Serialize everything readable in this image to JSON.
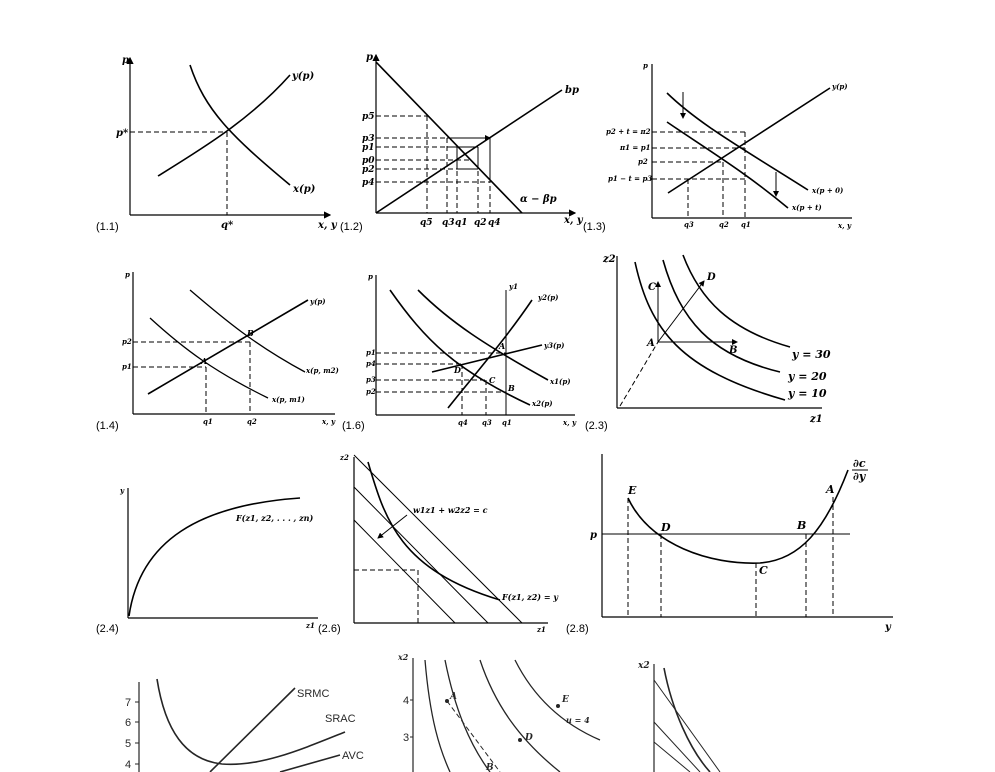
{
  "figures": [
    {
      "id": "1.1",
      "number": "(1.1)",
      "p_axis": "p",
      "p_star": "p*",
      "q_star": "q*",
      "x_axis": "x, y",
      "supply": "y(p)",
      "demand": "x(p)"
    },
    {
      "id": "1.2",
      "number": "(1.2)",
      "p_axis": "p",
      "x_axis": "x, y",
      "supply": "bp",
      "demand": "α − βp",
      "prices": [
        "p5",
        "p3",
        "p1",
        "p0",
        "p2",
        "p4"
      ],
      "quantities": [
        "q5",
        "q3",
        "q1",
        "q2",
        "q4"
      ]
    },
    {
      "id": "1.3",
      "number": "(1.3)",
      "p_axis": "p",
      "x_axis": "x, y",
      "supply": "y(p)",
      "demand1": "x(p + 0)",
      "demand2": "x(p + t)",
      "prices": [
        "p2 + t = π2",
        "π1 = p1",
        "p2",
        "p1 − t = p3"
      ],
      "quantities": [
        "q3",
        "q2",
        "q1"
      ]
    },
    {
      "id": "1.4",
      "number": "(1.4)",
      "p_axis": "p",
      "x_axis": "x, y",
      "supply": "y(p)",
      "demand1": "x(p, m2)",
      "demand2": "x(p, m1)",
      "prices": [
        "p2",
        "p1"
      ],
      "quantities": [
        "q1",
        "q2"
      ],
      "points": [
        "A",
        "B"
      ]
    },
    {
      "id": "1.6",
      "number": "(1.6)",
      "p_axis": "p",
      "x_axis": "x, y",
      "y1": "y1",
      "curves": [
        "y2(p)",
        "y3(p)",
        "x1(p)",
        "x2(p)"
      ],
      "prices": [
        "p1",
        "p4",
        "p3",
        "p2"
      ],
      "quantities": [
        "q4",
        "q3",
        "q1"
      ],
      "points": [
        "A",
        "D",
        "C",
        "B"
      ]
    },
    {
      "id": "2.3",
      "number": "(2.3)",
      "y_axis": "z2",
      "x_axis": "z1",
      "isoquants": [
        "y = 30",
        "y = 20",
        "y = 10"
      ],
      "points": [
        "A",
        "B",
        "C",
        "D"
      ]
    },
    {
      "id": "2.4",
      "number": "(2.4)",
      "y_axis": "y",
      "x_axis": "z1",
      "curve": "F(z1, z2, . . . , zn)"
    },
    {
      "id": "2.6",
      "number": "(2.6)",
      "y_axis": "z2",
      "x_axis": "z1",
      "isocost": "w1z1 + w2z2 = c",
      "isoquant": "F(z1, z2) = y"
    },
    {
      "id": "2.8",
      "number": "(2.8)",
      "y_axis": "p",
      "x_axis": "y",
      "curve_num": "∂c",
      "curve_den": "∂y",
      "points": [
        "E",
        "D",
        "C",
        "B",
        "A"
      ]
    },
    {
      "id": "3.x",
      "y_ticks": [
        "7",
        "6",
        "5",
        "4"
      ],
      "curves": [
        "SRMC",
        "SRAC",
        "AVC"
      ]
    },
    {
      "id": "4.x",
      "y_axis": "x2",
      "y_ticks": [
        "4",
        "3"
      ],
      "points": [
        "A",
        "E",
        "D",
        "B"
      ],
      "curve": "u = 4"
    },
    {
      "id": "5.x",
      "y_axis": "x2"
    }
  ]
}
